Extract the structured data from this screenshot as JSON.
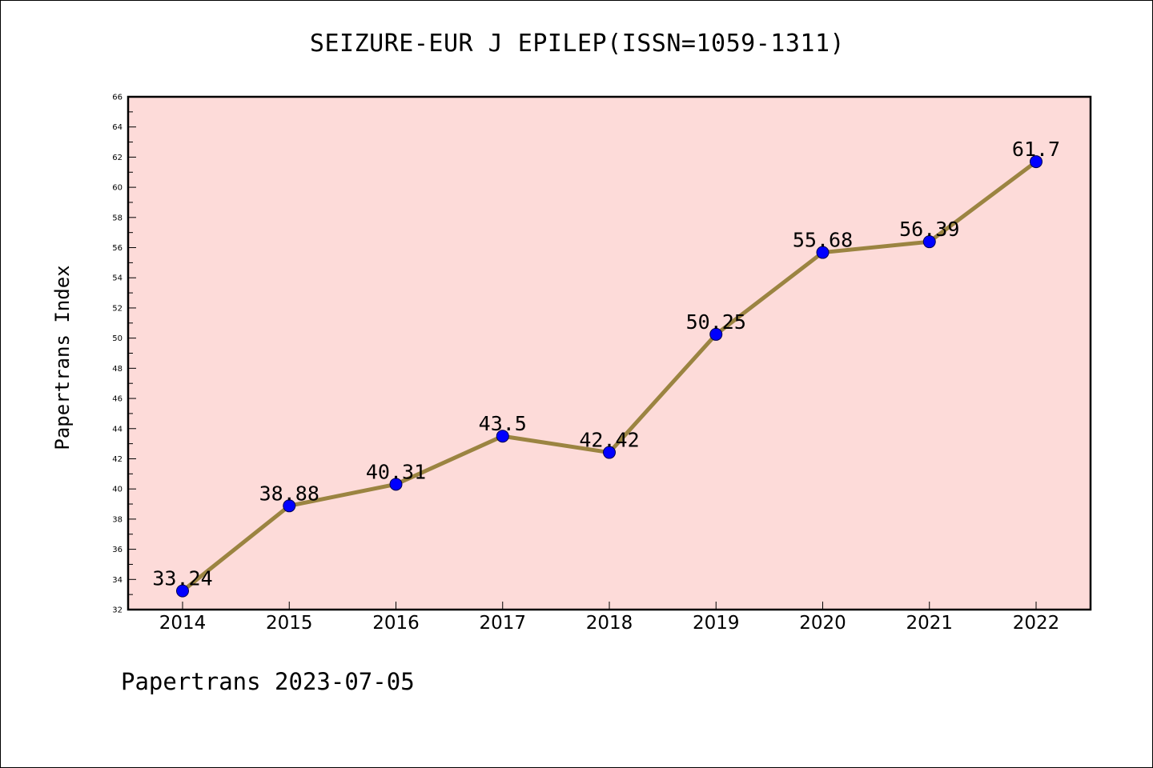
{
  "chart_data": {
    "type": "line",
    "title": "SEIZURE-EUR J EPILEP(ISSN=1059-1311)",
    "xlabel": "",
    "ylabel": "Papertrans Index",
    "categories": [
      "2014",
      "2015",
      "2016",
      "2017",
      "2018",
      "2019",
      "2020",
      "2021",
      "2022"
    ],
    "series": [
      {
        "values": [
          33.24,
          38.88,
          40.31,
          43.5,
          42.42,
          50.25,
          55.68,
          56.39,
          61.7
        ],
        "labels": [
          "33.24",
          "38.88",
          "40.31",
          "43.5",
          "42.42",
          "50.25",
          "55.68",
          "56.39",
          "61.7"
        ]
      }
    ],
    "ylim": [
      32,
      66
    ],
    "yticks": [
      32,
      34,
      36,
      38,
      40,
      42,
      44,
      46,
      48,
      50,
      52,
      54,
      56,
      58,
      60,
      62,
      64,
      66
    ],
    "grid": false,
    "legend": "none",
    "colors": {
      "plot_background": "#fddbd9",
      "line": "#9b8441",
      "marker": "#0000ff"
    }
  },
  "footer": {
    "text": "Papertrans 2023-07-05"
  }
}
